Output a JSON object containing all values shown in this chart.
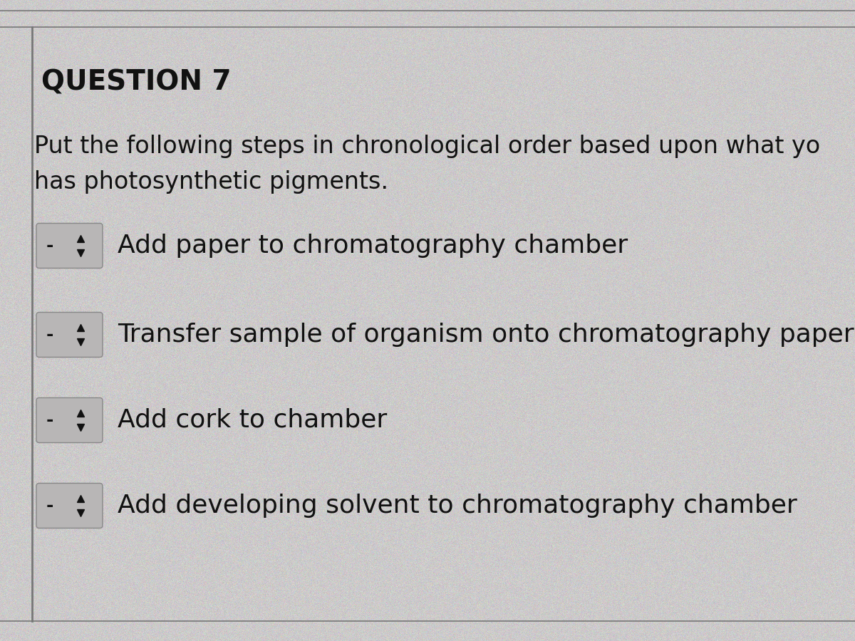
{
  "background_color": "#cccaca",
  "title": "QUESTION 7",
  "title_fontsize": 28,
  "title_fontweight": "bold",
  "question_text_line1": "Put the following steps in chronological order based upon what yo",
  "question_text_line2": "has photosynthetic pigments.",
  "question_fontsize": 24,
  "steps": [
    "Add paper to chromatography chamber",
    "Transfer sample of organism onto chromatography paper",
    "Add cork to chamber",
    "Add developing solvent to chromatography chamber"
  ],
  "step_fontsize": 26,
  "box_color": "#b8b6b6",
  "box_border_color": "#888888",
  "text_color": "#111111",
  "line_color": "#777777"
}
